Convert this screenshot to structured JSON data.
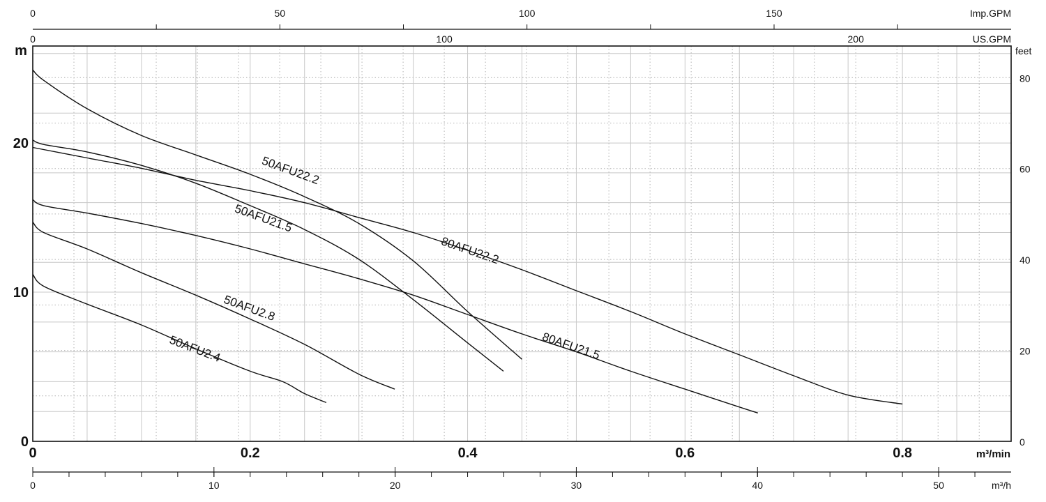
{
  "chart_data": {
    "type": "line",
    "axes": {
      "bottom": {
        "label": "m³/min",
        "ticks": [
          "0",
          "0.2",
          "0.4",
          "0.6",
          "0.8"
        ],
        "tick_values": [
          0,
          0.2,
          0.4,
          0.6,
          0.8
        ],
        "range": [
          0,
          0.9
        ]
      },
      "left": {
        "label": "m",
        "ticks": [
          "0",
          "10",
          "20"
        ],
        "tick_values": [
          0,
          10,
          20
        ],
        "range": [
          0,
          26.5
        ]
      },
      "right": {
        "label": "feet",
        "ticks": [
          "0",
          "20",
          "40",
          "60",
          "80"
        ],
        "tick_values": [
          0,
          20,
          40,
          60,
          80
        ]
      },
      "top1": {
        "label": "Imp.GPM",
        "ticks": [
          "0",
          "50",
          "100",
          "150"
        ],
        "tick_values": [
          0,
          50,
          100,
          150
        ]
      },
      "top2": {
        "label": "US.GPM",
        "ticks": [
          "0",
          "100",
          "200"
        ],
        "tick_values": [
          0,
          100,
          200
        ]
      },
      "bottom2": {
        "label": "m³/h",
        "ticks": [
          "0",
          "10",
          "20",
          "30",
          "40",
          "50"
        ],
        "tick_values": [
          0,
          10,
          20,
          30,
          40,
          50
        ]
      }
    },
    "grid": true,
    "series": [
      {
        "name": "50AFU22.2",
        "x": [
          0,
          0.01,
          0.05,
          0.1,
          0.15,
          0.2,
          0.25,
          0.3,
          0.35,
          0.4,
          0.45
        ],
        "y": [
          24.9,
          24.2,
          22.3,
          20.5,
          19.2,
          17.9,
          16.4,
          14.6,
          12.1,
          8.7,
          5.5
        ],
        "label_at": [
          0.21,
          18.6
        ],
        "label_angle": 20
      },
      {
        "name": "50AFU21.5",
        "x": [
          0,
          0.01,
          0.05,
          0.1,
          0.15,
          0.2,
          0.25,
          0.3,
          0.35,
          0.4,
          0.433
        ],
        "y": [
          20.2,
          19.9,
          19.4,
          18.5,
          17.3,
          15.8,
          14.2,
          12.2,
          9.5,
          6.6,
          4.7
        ],
        "label_at": [
          0.185,
          15.4
        ],
        "label_angle": 20
      },
      {
        "name": "80AFU22.2",
        "x": [
          0,
          0.05,
          0.1,
          0.15,
          0.2,
          0.25,
          0.3,
          0.35,
          0.4,
          0.45,
          0.5,
          0.55,
          0.6,
          0.65,
          0.7,
          0.75,
          0.8
        ],
        "y": [
          19.7,
          19.0,
          18.3,
          17.5,
          16.8,
          16.0,
          15.0,
          14.0,
          12.8,
          11.5,
          10.1,
          8.7,
          7.2,
          5.8,
          4.4,
          3.1,
          2.5
        ],
        "label_at": [
          0.375,
          13.2
        ],
        "label_angle": 19
      },
      {
        "name": "80AFU21.5",
        "x": [
          0,
          0.01,
          0.05,
          0.1,
          0.15,
          0.2,
          0.25,
          0.3,
          0.35,
          0.4,
          0.45,
          0.5,
          0.55,
          0.6,
          0.65,
          0.667
        ],
        "y": [
          16.2,
          15.8,
          15.3,
          14.6,
          13.8,
          12.9,
          11.9,
          10.9,
          9.8,
          8.5,
          7.2,
          6.0,
          4.7,
          3.5,
          2.3,
          1.9
        ],
        "label_at": [
          0.468,
          6.8
        ],
        "label_angle": 19
      },
      {
        "name": "50AFU2.8",
        "x": [
          0,
          0.01,
          0.05,
          0.1,
          0.15,
          0.2,
          0.25,
          0.3,
          0.333
        ],
        "y": [
          14.7,
          14.0,
          12.9,
          11.3,
          9.8,
          8.2,
          6.5,
          4.5,
          3.5
        ],
        "label_at": [
          0.175,
          9.3
        ],
        "label_angle": 20
      },
      {
        "name": "50AFU2.4",
        "x": [
          0,
          0.01,
          0.05,
          0.1,
          0.15,
          0.2,
          0.23,
          0.25,
          0.27
        ],
        "y": [
          11.2,
          10.4,
          9.2,
          7.8,
          6.2,
          4.7,
          4.0,
          3.2,
          2.6
        ],
        "label_at": [
          0.125,
          6.6
        ],
        "label_angle": 21
      }
    ]
  }
}
